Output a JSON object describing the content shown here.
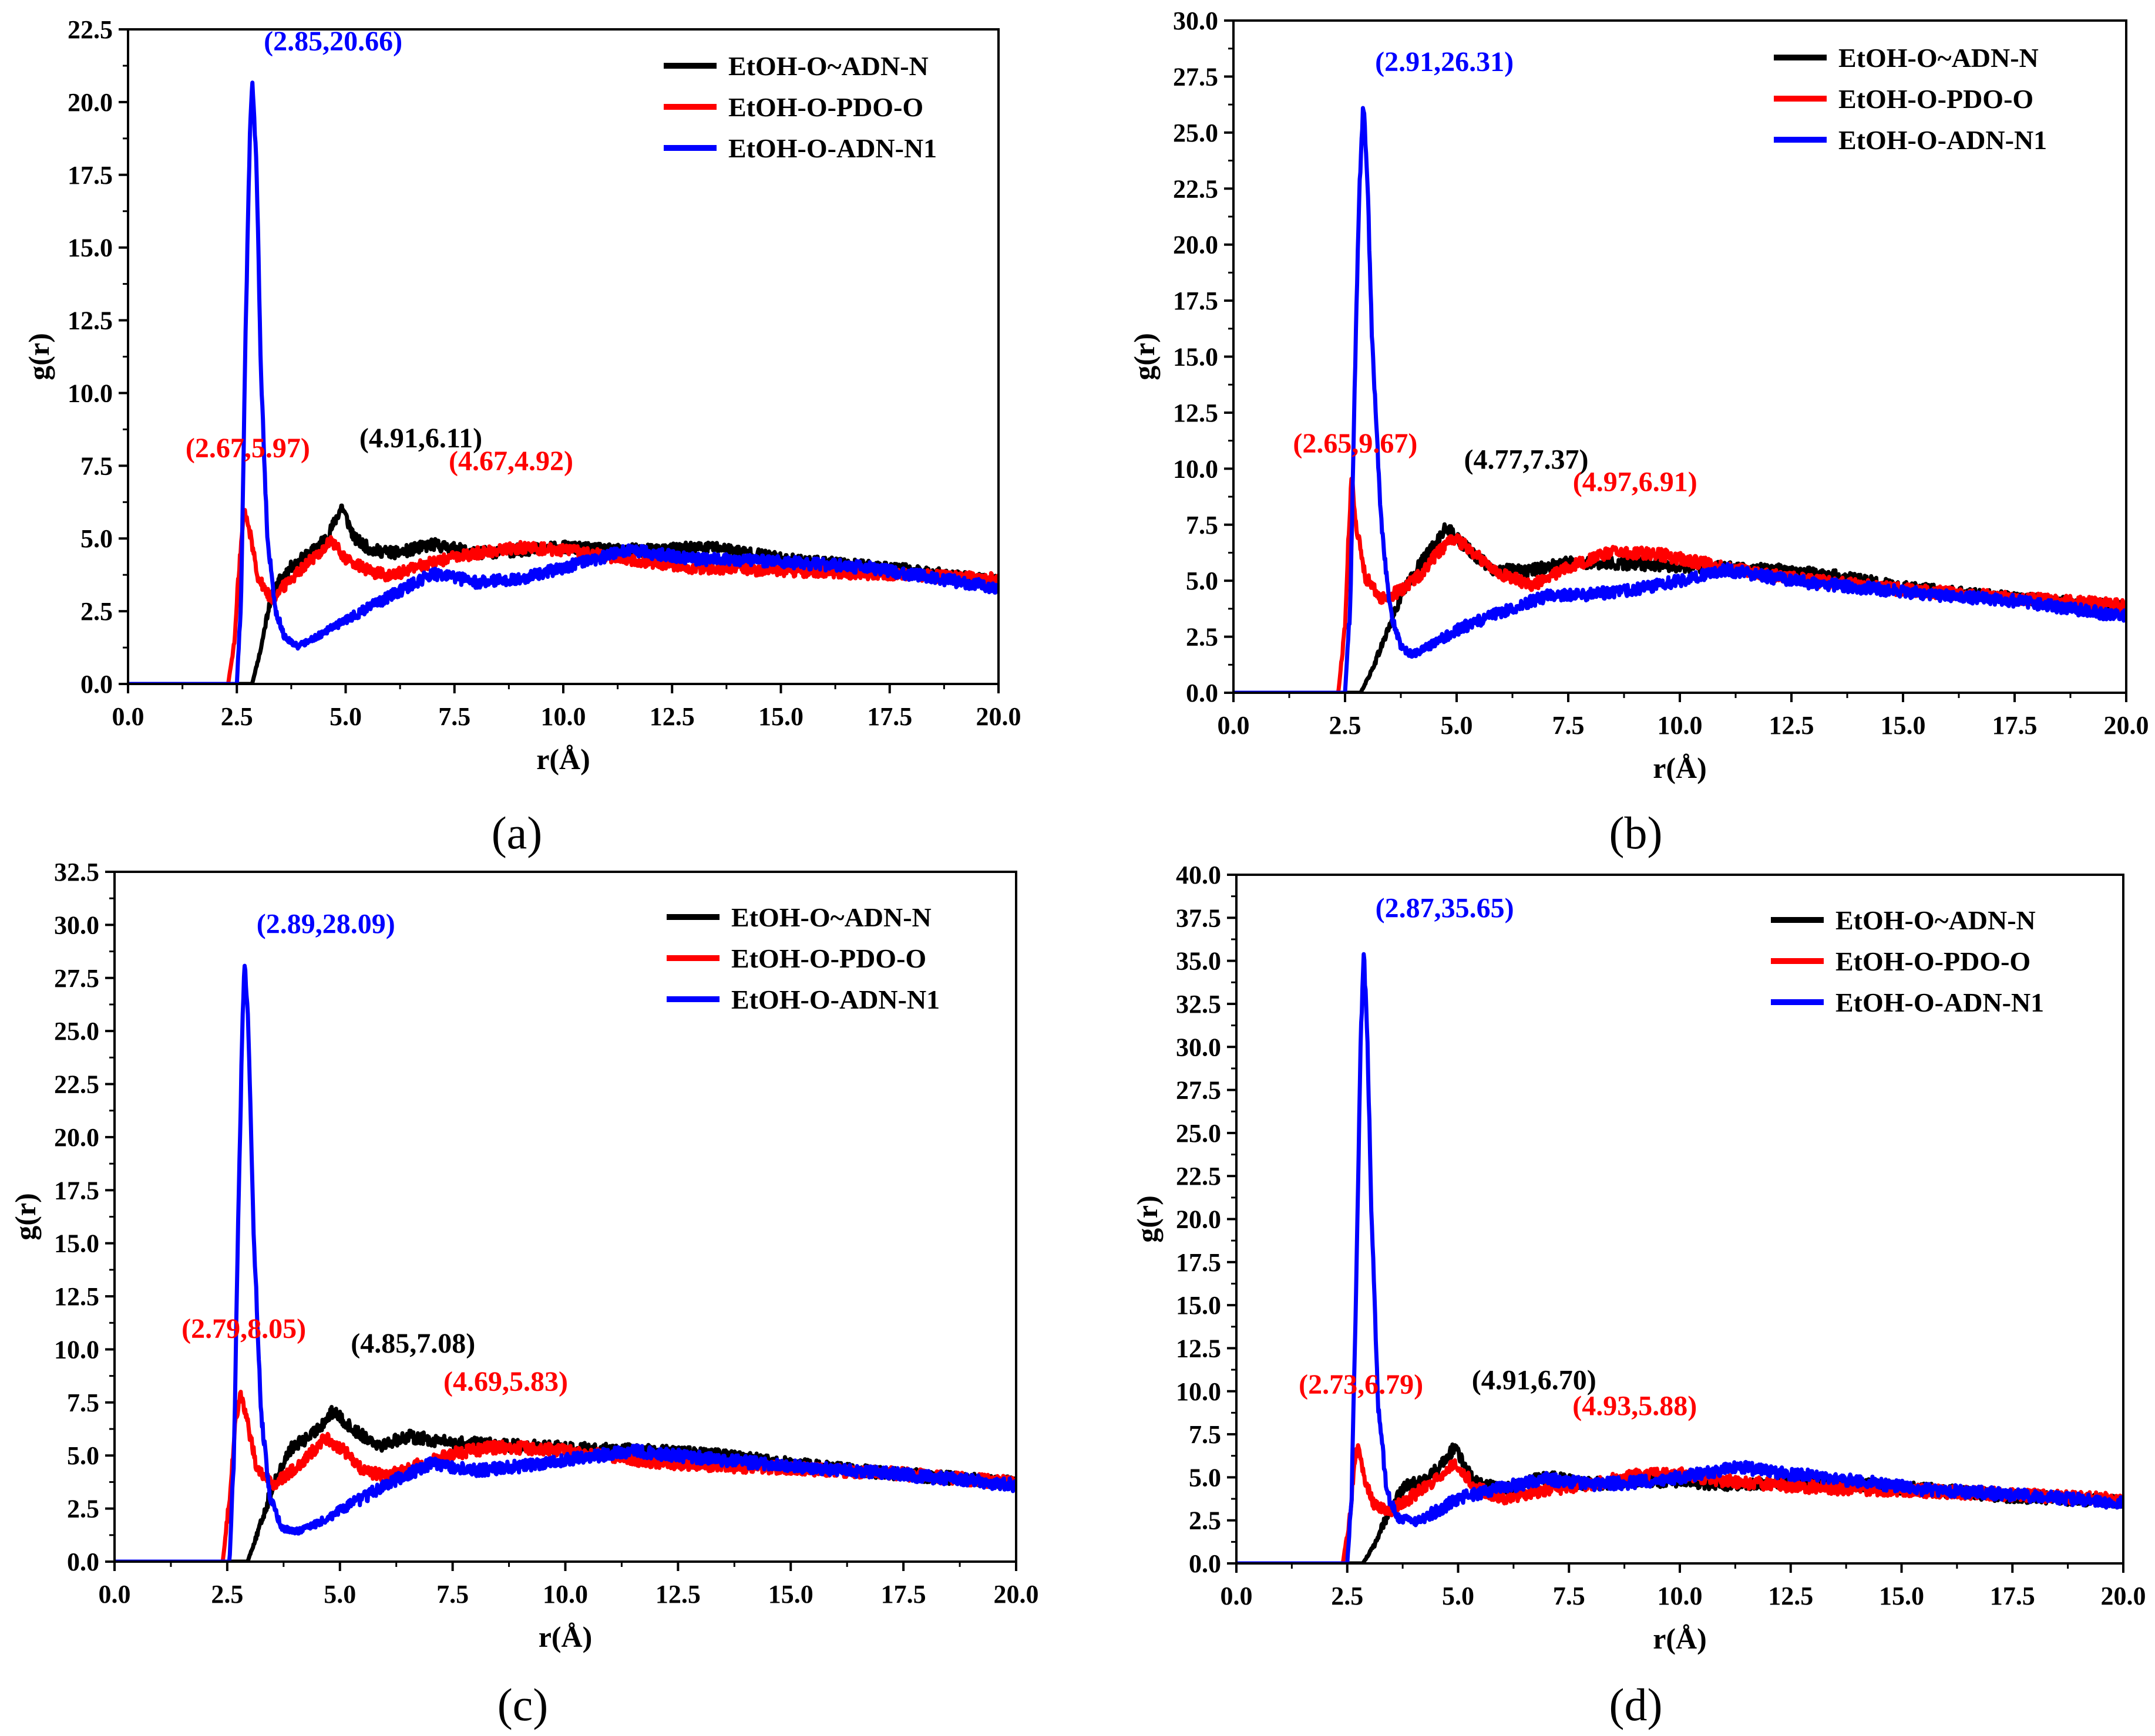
{
  "chart_data": [
    {
      "type": "line",
      "panel": "a",
      "caption": "(a)",
      "xlabel": "r(Å)",
      "ylabel": "g(r)",
      "xlim": [
        0,
        20
      ],
      "ylim": [
        0,
        22.5
      ],
      "xticks": [
        "0.0",
        "2.5",
        "5.0",
        "7.5",
        "10.0",
        "12.5",
        "15.0",
        "17.5",
        "20.0"
      ],
      "yticks": [
        "0.0",
        "2.5",
        "5.0",
        "7.5",
        "10.0",
        "12.5",
        "15.0",
        "17.5",
        "20.0",
        "22.5"
      ],
      "legend": [
        "EtOH-O~ADN-N",
        "EtOH-O-PDO-O",
        "EtOH-O-ADN-N1"
      ],
      "series": [
        {
          "name": "EtOH-O~ADN-N",
          "color": "#000000",
          "x": [
            0,
            2.6,
            2.85,
            3.05,
            3.25,
            3.5,
            3.8,
            4.2,
            4.6,
            4.91,
            5.2,
            5.6,
            6.2,
            7.0,
            8.0,
            9.0,
            10.0,
            11.0,
            12.0,
            13.5,
            15.0,
            16.5,
            18.0,
            20.0
          ],
          "y": [
            0,
            0,
            0,
            1.2,
            2.8,
            3.6,
            4.1,
            4.5,
            5.1,
            6.11,
            5.0,
            4.6,
            4.5,
            4.8,
            4.5,
            4.6,
            4.7,
            4.6,
            4.6,
            4.7,
            4.3,
            4.1,
            3.9,
            3.5
          ]
        },
        {
          "name": "EtOH-O-PDO-O",
          "color": "#ff0000",
          "x": [
            0,
            2.3,
            2.45,
            2.55,
            2.67,
            2.8,
            3.0,
            3.3,
            3.6,
            4.0,
            4.4,
            4.67,
            5.0,
            5.5,
            6.0,
            7.0,
            8.0,
            9.0,
            10.0,
            11.0,
            12.0,
            13.0,
            15.0,
            17.0,
            20.0
          ],
          "y": [
            0,
            0,
            1.5,
            4.0,
            5.97,
            5.2,
            3.6,
            2.9,
            3.4,
            4.0,
            4.5,
            4.92,
            4.3,
            3.9,
            3.7,
            4.2,
            4.5,
            4.7,
            4.6,
            4.4,
            4.2,
            4.0,
            3.9,
            3.8,
            3.6
          ]
        },
        {
          "name": "EtOH-O-ADN-N1",
          "color": "#0000ff",
          "x": [
            0,
            2.5,
            2.6,
            2.7,
            2.8,
            2.85,
            2.95,
            3.05,
            3.2,
            3.4,
            3.6,
            3.9,
            4.3,
            5.0,
            6.0,
            7.0,
            8.0,
            9.0,
            10.0,
            11.5,
            13.0,
            15.0,
            17.0,
            20.0
          ],
          "y": [
            0,
            0,
            3.0,
            12.0,
            19.0,
            20.66,
            18.0,
            11.0,
            5.0,
            2.5,
            1.6,
            1.3,
            1.6,
            2.2,
            3.0,
            3.8,
            3.5,
            3.6,
            4.0,
            4.6,
            4.3,
            4.2,
            4.0,
            3.3
          ]
        }
      ],
      "annotations": [
        {
          "text": "(2.85,20.66)",
          "x": 2.85,
          "y": 20.66,
          "color": "#0000ff"
        },
        {
          "text": "(4.91,6.11)",
          "x": 4.91,
          "y": 6.11,
          "color": "#000000"
        },
        {
          "text": "(2.67,5.97)",
          "x": 2.67,
          "y": 5.97,
          "color": "#ff0000"
        },
        {
          "text": "(4.67,4.92)",
          "x": 4.67,
          "y": 4.92,
          "color": "#ff0000"
        }
      ]
    },
    {
      "type": "line",
      "panel": "b",
      "caption": "(b)",
      "xlabel": "r(Å)",
      "ylabel": "g(r)",
      "xlim": [
        0,
        20
      ],
      "ylim": [
        0,
        30
      ],
      "xticks": [
        "0.0",
        "2.5",
        "5.0",
        "7.5",
        "10.0",
        "12.5",
        "15.0",
        "17.5",
        "20.0"
      ],
      "yticks": [
        "0.0",
        "2.5",
        "5.0",
        "7.5",
        "10.0",
        "12.5",
        "15.0",
        "17.5",
        "20.0",
        "22.5",
        "25.0",
        "27.5",
        "30.0"
      ],
      "legend": [
        "EtOH-O~ADN-N",
        "EtOH-O-PDO-O",
        "EtOH-O-ADN-N1"
      ],
      "series": [
        {
          "name": "EtOH-O~ADN-N",
          "color": "#000000",
          "x": [
            0,
            2.6,
            2.85,
            3.1,
            3.4,
            3.8,
            4.2,
            4.77,
            5.2,
            5.8,
            6.5,
            7.5,
            8.5,
            9.5,
            10.5,
            12.0,
            13.5,
            15.0,
            17.0,
            20.0
          ],
          "y": [
            0,
            0,
            0,
            1.0,
            2.5,
            4.5,
            5.8,
            7.37,
            6.5,
            5.5,
            5.4,
            5.8,
            5.8,
            5.7,
            5.6,
            5.5,
            5.2,
            4.7,
            4.3,
            3.8
          ]
        },
        {
          "name": "EtOH-O-PDO-O",
          "color": "#ff0000",
          "x": [
            0,
            2.35,
            2.5,
            2.58,
            2.65,
            2.75,
            2.95,
            3.3,
            3.7,
            4.2,
            4.6,
            4.97,
            5.4,
            6.0,
            6.7,
            7.5,
            8.5,
            9.5,
            10.5,
            11.5,
            13.0,
            15.0,
            17.0,
            20.0
          ],
          "y": [
            0,
            0,
            3.0,
            7.0,
            9.67,
            7.5,
            5.2,
            4.2,
            4.5,
            5.3,
            6.3,
            6.91,
            6.2,
            5.3,
            4.8,
            5.6,
            6.3,
            6.2,
            5.8,
            5.4,
            5.0,
            4.6,
            4.3,
            3.9
          ]
        },
        {
          "name": "EtOH-O-ADN-N1",
          "color": "#0000ff",
          "x": [
            0,
            2.5,
            2.62,
            2.72,
            2.82,
            2.91,
            3.0,
            3.1,
            3.3,
            3.5,
            3.75,
            4.0,
            4.5,
            5.0,
            6.0,
            7.0,
            8.0,
            9.0,
            10.0,
            11.0,
            12.5,
            15.0,
            17.5,
            20.0
          ],
          "y": [
            0,
            0,
            4.0,
            14.0,
            22.5,
            26.31,
            23.0,
            16.0,
            8.0,
            3.8,
            2.0,
            1.7,
            2.2,
            2.8,
            3.6,
            4.3,
            4.4,
            4.6,
            5.0,
            5.5,
            5.0,
            4.5,
            4.1,
            3.4
          ]
        }
      ],
      "annotations": [
        {
          "text": "(2.91,26.31)",
          "x": 2.91,
          "y": 26.31,
          "color": "#0000ff"
        },
        {
          "text": "(4.77,7.37)",
          "x": 4.77,
          "y": 7.37,
          "color": "#000000"
        },
        {
          "text": "(2.65,9.67)",
          "x": 2.65,
          "y": 9.67,
          "color": "#ff0000"
        },
        {
          "text": "(4.97,6.91)",
          "x": 4.97,
          "y": 6.91,
          "color": "#ff0000"
        }
      ]
    },
    {
      "type": "line",
      "panel": "c",
      "caption": "(c)",
      "xlabel": "r(Å)",
      "ylabel": "g(r)",
      "xlim": [
        0,
        20
      ],
      "ylim": [
        0,
        32.5
      ],
      "xticks": [
        "0.0",
        "2.5",
        "5.0",
        "7.5",
        "10.0",
        "12.5",
        "15.0",
        "17.5",
        "20.0"
      ],
      "yticks": [
        "0.0",
        "2.5",
        "5.0",
        "7.5",
        "10.0",
        "12.5",
        "15.0",
        "17.5",
        "20.0",
        "22.5",
        "25.0",
        "27.5",
        "30.0",
        "32.5"
      ],
      "legend": [
        "EtOH-O~ADN-N",
        "EtOH-O-PDO-O",
        "EtOH-O-ADN-N1"
      ],
      "series": [
        {
          "name": "EtOH-O~ADN-N",
          "color": "#000000",
          "x": [
            0,
            2.7,
            2.95,
            3.2,
            3.5,
            3.9,
            4.4,
            4.85,
            5.3,
            5.9,
            6.5,
            7.5,
            8.5,
            9.5,
            10.5,
            12.0,
            13.5,
            15.0,
            17.0,
            20.0
          ],
          "y": [
            0,
            0,
            0,
            1.5,
            3.5,
            5.3,
            6.0,
            7.08,
            6.2,
            5.5,
            5.9,
            5.6,
            5.5,
            5.4,
            5.3,
            5.2,
            5.0,
            4.6,
            4.2,
            3.7
          ]
        },
        {
          "name": "EtOH-O-PDO-O",
          "color": "#ff0000",
          "x": [
            0,
            2.4,
            2.55,
            2.68,
            2.79,
            2.95,
            3.15,
            3.5,
            3.9,
            4.3,
            4.69,
            5.1,
            5.5,
            6.0,
            6.8,
            7.5,
            8.5,
            9.5,
            10.5,
            12.0,
            13.5,
            15.0,
            17.0,
            20.0
          ],
          "y": [
            0,
            0,
            3.0,
            6.5,
            8.05,
            6.5,
            4.5,
            3.6,
            4.2,
            5.0,
            5.83,
            5.2,
            4.3,
            4.0,
            4.6,
            5.1,
            5.4,
            5.3,
            5.1,
            4.7,
            4.5,
            4.4,
            4.2,
            3.7
          ]
        },
        {
          "name": "EtOH-O-ADN-N1",
          "color": "#0000ff",
          "x": [
            0,
            2.55,
            2.65,
            2.75,
            2.85,
            2.89,
            2.97,
            3.08,
            3.25,
            3.45,
            3.7,
            4.0,
            4.5,
            5.0,
            6.0,
            7.0,
            8.0,
            9.0,
            10.0,
            11.5,
            13.0,
            15.0,
            17.5,
            20.0
          ],
          "y": [
            0,
            0,
            5.0,
            17.0,
            26.5,
            28.09,
            25.0,
            16.0,
            7.0,
            3.0,
            1.6,
            1.4,
            1.8,
            2.4,
            3.6,
            4.6,
            4.3,
            4.5,
            4.8,
            5.2,
            4.9,
            4.5,
            4.1,
            3.6
          ]
        }
      ],
      "annotations": [
        {
          "text": "(2.89,28.09)",
          "x": 2.89,
          "y": 28.09,
          "color": "#0000ff"
        },
        {
          "text": "(4.85,7.08)",
          "x": 4.85,
          "y": 7.08,
          "color": "#000000"
        },
        {
          "text": "(2.79,8.05)",
          "x": 2.79,
          "y": 8.05,
          "color": "#ff0000"
        },
        {
          "text": "(4.69,5.83)",
          "x": 4.69,
          "y": 5.83,
          "color": "#ff0000"
        }
      ]
    },
    {
      "type": "line",
      "panel": "d",
      "caption": "(d)",
      "xlabel": "r(Å)",
      "ylabel": "g(r)",
      "xlim": [
        0,
        20
      ],
      "ylim": [
        0,
        40
      ],
      "xticks": [
        "0.0",
        "2.5",
        "5.0",
        "7.5",
        "10.0",
        "12.5",
        "15.0",
        "17.5",
        "20.0"
      ],
      "yticks": [
        "0.0",
        "2.5",
        "5.0",
        "7.5",
        "10.0",
        "12.5",
        "15.0",
        "17.5",
        "20.0",
        "22.5",
        "25.0",
        "27.5",
        "30.0",
        "32.5",
        "35.0",
        "37.5",
        "40.0"
      ],
      "legend": [
        "EtOH-O~ADN-N",
        "EtOH-O-PDO-O",
        "EtOH-O-ADN-N1"
      ],
      "series": [
        {
          "name": "EtOH-O~ADN-N",
          "color": "#000000",
          "x": [
            0,
            2.6,
            2.85,
            3.1,
            3.4,
            3.8,
            4.3,
            4.91,
            5.4,
            6.0,
            7.0,
            8.0,
            9.0,
            10.0,
            11.0,
            12.5,
            14.0,
            15.5,
            17.5,
            20.0
          ],
          "y": [
            0,
            0,
            0,
            1.0,
            2.8,
            4.5,
            4.8,
            6.7,
            4.7,
            4.3,
            5.0,
            4.6,
            4.8,
            4.8,
            4.6,
            4.7,
            4.6,
            4.3,
            3.9,
            3.6
          ]
        },
        {
          "name": "EtOH-O-PDO-O",
          "color": "#ff0000",
          "x": [
            0,
            2.4,
            2.55,
            2.65,
            2.73,
            2.88,
            3.1,
            3.4,
            3.8,
            4.3,
            4.93,
            5.4,
            6.0,
            7.0,
            8.0,
            9.0,
            10.0,
            11.0,
            12.5,
            14.0,
            15.5,
            17.5,
            20.0
          ],
          "y": [
            0,
            0,
            2.5,
            5.5,
            6.79,
            5.0,
            3.4,
            3.0,
            3.6,
            4.5,
            5.88,
            4.4,
            3.8,
            4.3,
            4.6,
            5.1,
            5.2,
            4.8,
            4.5,
            4.3,
            4.2,
            4.0,
            3.7
          ]
        },
        {
          "name": "EtOH-O-ADN-N1",
          "color": "#0000ff",
          "x": [
            0,
            2.5,
            2.6,
            2.7,
            2.8,
            2.87,
            2.95,
            3.05,
            3.2,
            3.4,
            3.65,
            4.0,
            4.5,
            5.0,
            6.0,
            7.0,
            8.0,
            9.0,
            10.0,
            11.3,
            12.5,
            14.0,
            15.5,
            17.5,
            20.0
          ],
          "y": [
            0,
            0,
            4.0,
            16.0,
            30.0,
            35.65,
            31.0,
            20.0,
            9.0,
            4.0,
            2.6,
            2.4,
            3.0,
            3.8,
            4.4,
            4.9,
            4.6,
            4.7,
            5.0,
            5.6,
            5.2,
            4.8,
            4.3,
            4.0,
            3.5
          ]
        }
      ],
      "annotations": [
        {
          "text": "(2.87,35.65)",
          "x": 2.87,
          "y": 35.65,
          "color": "#0000ff"
        },
        {
          "text": "(4.91,6.70)",
          "x": 4.91,
          "y": 6.7,
          "color": "#000000"
        },
        {
          "text": "(2.73,6.79)",
          "x": 2.73,
          "y": 6.79,
          "color": "#ff0000"
        },
        {
          "text": "(4.93,5.88)",
          "x": 4.93,
          "y": 5.88,
          "color": "#ff0000"
        }
      ]
    }
  ]
}
